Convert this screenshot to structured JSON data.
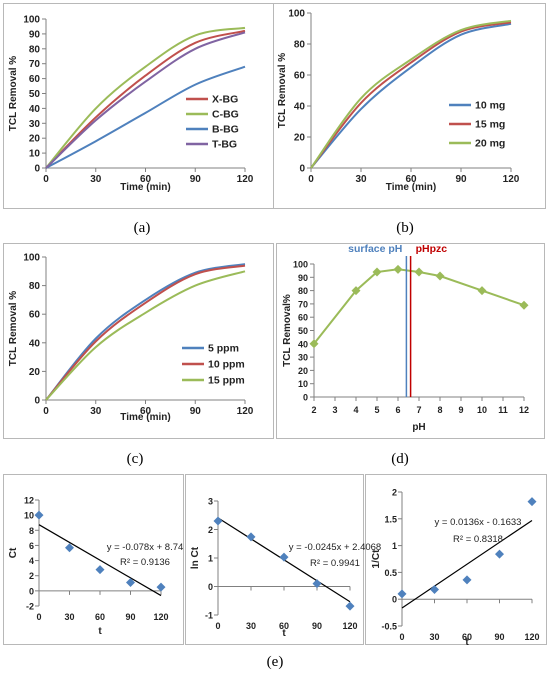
{
  "captions": {
    "a": "(a)",
    "b": "(b)",
    "c": "(c)",
    "d": "(d)",
    "e": "(e)"
  },
  "chart_data": [
    {
      "id": "a",
      "type": "line",
      "xlabel": "Time (min)",
      "ylabel": "TCL Removal %",
      "xlim": [
        0,
        120
      ],
      "ylim": [
        0,
        100
      ],
      "xticks": [
        0,
        30,
        60,
        90,
        120
      ],
      "yticks": [
        0,
        10,
        20,
        30,
        40,
        50,
        60,
        70,
        80,
        90,
        100
      ],
      "legend_position": "right",
      "series": [
        {
          "name": "X-BG",
          "color": "#c0504d",
          "x": [
            0,
            30,
            60,
            90,
            120
          ],
          "y": [
            0,
            34,
            62,
            84,
            92
          ]
        },
        {
          "name": "C-BG",
          "color": "#9bbb59",
          "x": [
            0,
            30,
            60,
            90,
            120
          ],
          "y": [
            0,
            40,
            68,
            89,
            94
          ]
        },
        {
          "name": "B-BG",
          "color": "#4f81bd",
          "x": [
            0,
            30,
            60,
            90,
            120
          ],
          "y": [
            0,
            18,
            37,
            56,
            68
          ]
        },
        {
          "name": "T-BG",
          "color": "#8064a2",
          "x": [
            0,
            30,
            60,
            90,
            120
          ],
          "y": [
            0,
            32,
            58,
            80,
            91
          ]
        }
      ]
    },
    {
      "id": "b",
      "type": "line",
      "xlabel": "Time (min)",
      "ylabel": "TCL Removal %",
      "xlim": [
        0,
        120
      ],
      "ylim": [
        0,
        100
      ],
      "xticks": [
        0,
        30,
        60,
        90,
        120
      ],
      "yticks": [
        0,
        20,
        40,
        60,
        80,
        100
      ],
      "legend_position": "bottom-right",
      "series": [
        {
          "name": "10 mg",
          "color": "#4f81bd",
          "x": [
            0,
            30,
            60,
            90,
            120
          ],
          "y": [
            0,
            38,
            65,
            86,
            93
          ]
        },
        {
          "name": "15 mg",
          "color": "#c0504d",
          "x": [
            0,
            30,
            60,
            90,
            120
          ],
          "y": [
            0,
            42,
            68,
            88,
            94
          ]
        },
        {
          "name": "20 mg",
          "color": "#9bbb59",
          "x": [
            0,
            30,
            60,
            90,
            120
          ],
          "y": [
            0,
            45,
            70,
            89,
            95
          ]
        }
      ]
    },
    {
      "id": "c",
      "type": "line",
      "xlabel": "Time (min)",
      "ylabel": "TCL Removal %",
      "xlim": [
        0,
        120
      ],
      "ylim": [
        0,
        100
      ],
      "xticks": [
        0,
        30,
        60,
        90,
        120
      ],
      "yticks": [
        0,
        20,
        40,
        60,
        80,
        100
      ],
      "legend_position": "bottom-right",
      "series": [
        {
          "name": "5 ppm",
          "color": "#4f81bd",
          "x": [
            0,
            30,
            60,
            90,
            120
          ],
          "y": [
            0,
            43,
            70,
            89,
            95
          ]
        },
        {
          "name": "10 ppm",
          "color": "#c0504d",
          "x": [
            0,
            30,
            60,
            90,
            120
          ],
          "y": [
            0,
            41,
            68,
            88,
            94
          ]
        },
        {
          "name": "15 ppm",
          "color": "#9bbb59",
          "x": [
            0,
            30,
            60,
            90,
            120
          ],
          "y": [
            0,
            37,
            61,
            80,
            90
          ]
        }
      ]
    },
    {
      "id": "d",
      "type": "line",
      "xlabel": "pH",
      "ylabel": "TCL Removal%",
      "xlim": [
        2,
        12
      ],
      "ylim": [
        0,
        100
      ],
      "xticks": [
        2,
        3,
        4,
        5,
        6,
        7,
        8,
        9,
        10,
        11,
        12
      ],
      "yticks": [
        0,
        10,
        20,
        30,
        40,
        50,
        60,
        70,
        80,
        90,
        100
      ],
      "series": [
        {
          "name": "",
          "color": "#9bbb59",
          "marker": "diamond",
          "x": [
            2,
            4,
            5,
            6,
            7,
            8,
            10,
            12
          ],
          "y": [
            40,
            80,
            94,
            96,
            94,
            91,
            80,
            69
          ]
        }
      ],
      "vlines": [
        {
          "label": "surface pH",
          "x": 6.4,
          "color": "#4f81bd"
        },
        {
          "label": "pHpzc",
          "x": 6.6,
          "color": "#c00000"
        }
      ]
    },
    {
      "id": "e1",
      "type": "scatter",
      "xlabel": "t",
      "ylabel": "Ct",
      "xlim": [
        0,
        120
      ],
      "ylim": [
        -2,
        12
      ],
      "xticks": [
        0,
        30,
        60,
        90,
        120
      ],
      "yticks": [
        -2,
        0,
        2,
        4,
        6,
        8,
        10,
        12
      ],
      "points": {
        "x": [
          0,
          30,
          60,
          90,
          120
        ],
        "y": [
          10,
          5.7,
          2.8,
          1.1,
          0.5
        ]
      },
      "trendline": {
        "slope": -0.078,
        "intercept": 8.74
      },
      "equation": "y = -0.078x + 8.74",
      "r2": "R² = 0.9136"
    },
    {
      "id": "e2",
      "type": "scatter",
      "xlabel": "t",
      "ylabel": "ln Ct",
      "xlim": [
        0,
        120
      ],
      "ylim": [
        -1,
        3
      ],
      "xticks": [
        0,
        30,
        60,
        90,
        120
      ],
      "yticks": [
        -1,
        0,
        1,
        2,
        3
      ],
      "points": {
        "x": [
          0,
          30,
          60,
          90,
          120
        ],
        "y": [
          2.3,
          1.74,
          1.03,
          0.1,
          -0.69
        ]
      },
      "trendline": {
        "slope": -0.0245,
        "intercept": 2.4068
      },
      "equation": "y = -0.0245x + 2.4068",
      "r2": "R² = 0.9941"
    },
    {
      "id": "e3",
      "type": "scatter",
      "xlabel": "t",
      "ylabel": "1/Ct",
      "xlim": [
        0,
        120
      ],
      "ylim": [
        -0.5,
        2
      ],
      "xticks": [
        0,
        30,
        60,
        90,
        120
      ],
      "yticks": [
        -0.5,
        0,
        0.5,
        1,
        1.5,
        2
      ],
      "points": {
        "x": [
          0,
          30,
          60,
          90,
          120
        ],
        "y": [
          0.1,
          0.18,
          0.36,
          0.84,
          1.82
        ]
      },
      "trendline": {
        "slope": 0.0136,
        "intercept": -0.1633
      },
      "equation": "y = 0.0136x - 0.1633",
      "r2": "R² = 0.8318"
    }
  ]
}
